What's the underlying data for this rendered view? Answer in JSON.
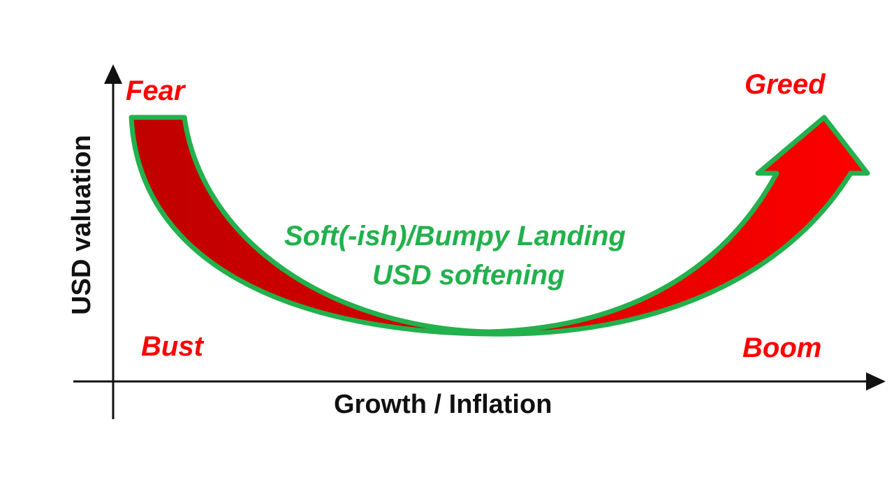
{
  "diagram": {
    "labels": {
      "top_left": "Fear",
      "top_right": "Greed",
      "bottom_left": "Bust",
      "bottom_right": "Boom",
      "center_line1": "Soft(-ish)/Bumpy Landing",
      "center_line2": "USD softening"
    },
    "axes": {
      "x_label": "Growth / Inflation",
      "y_label": "USD valuation"
    },
    "colors": {
      "arrow_fill_dark": "#c00000",
      "arrow_fill_bright": "#ff0000",
      "arrow_outline": "#22b14c",
      "label_red": "#ff0000",
      "label_green": "#22b14c",
      "axis": "#111111"
    }
  }
}
